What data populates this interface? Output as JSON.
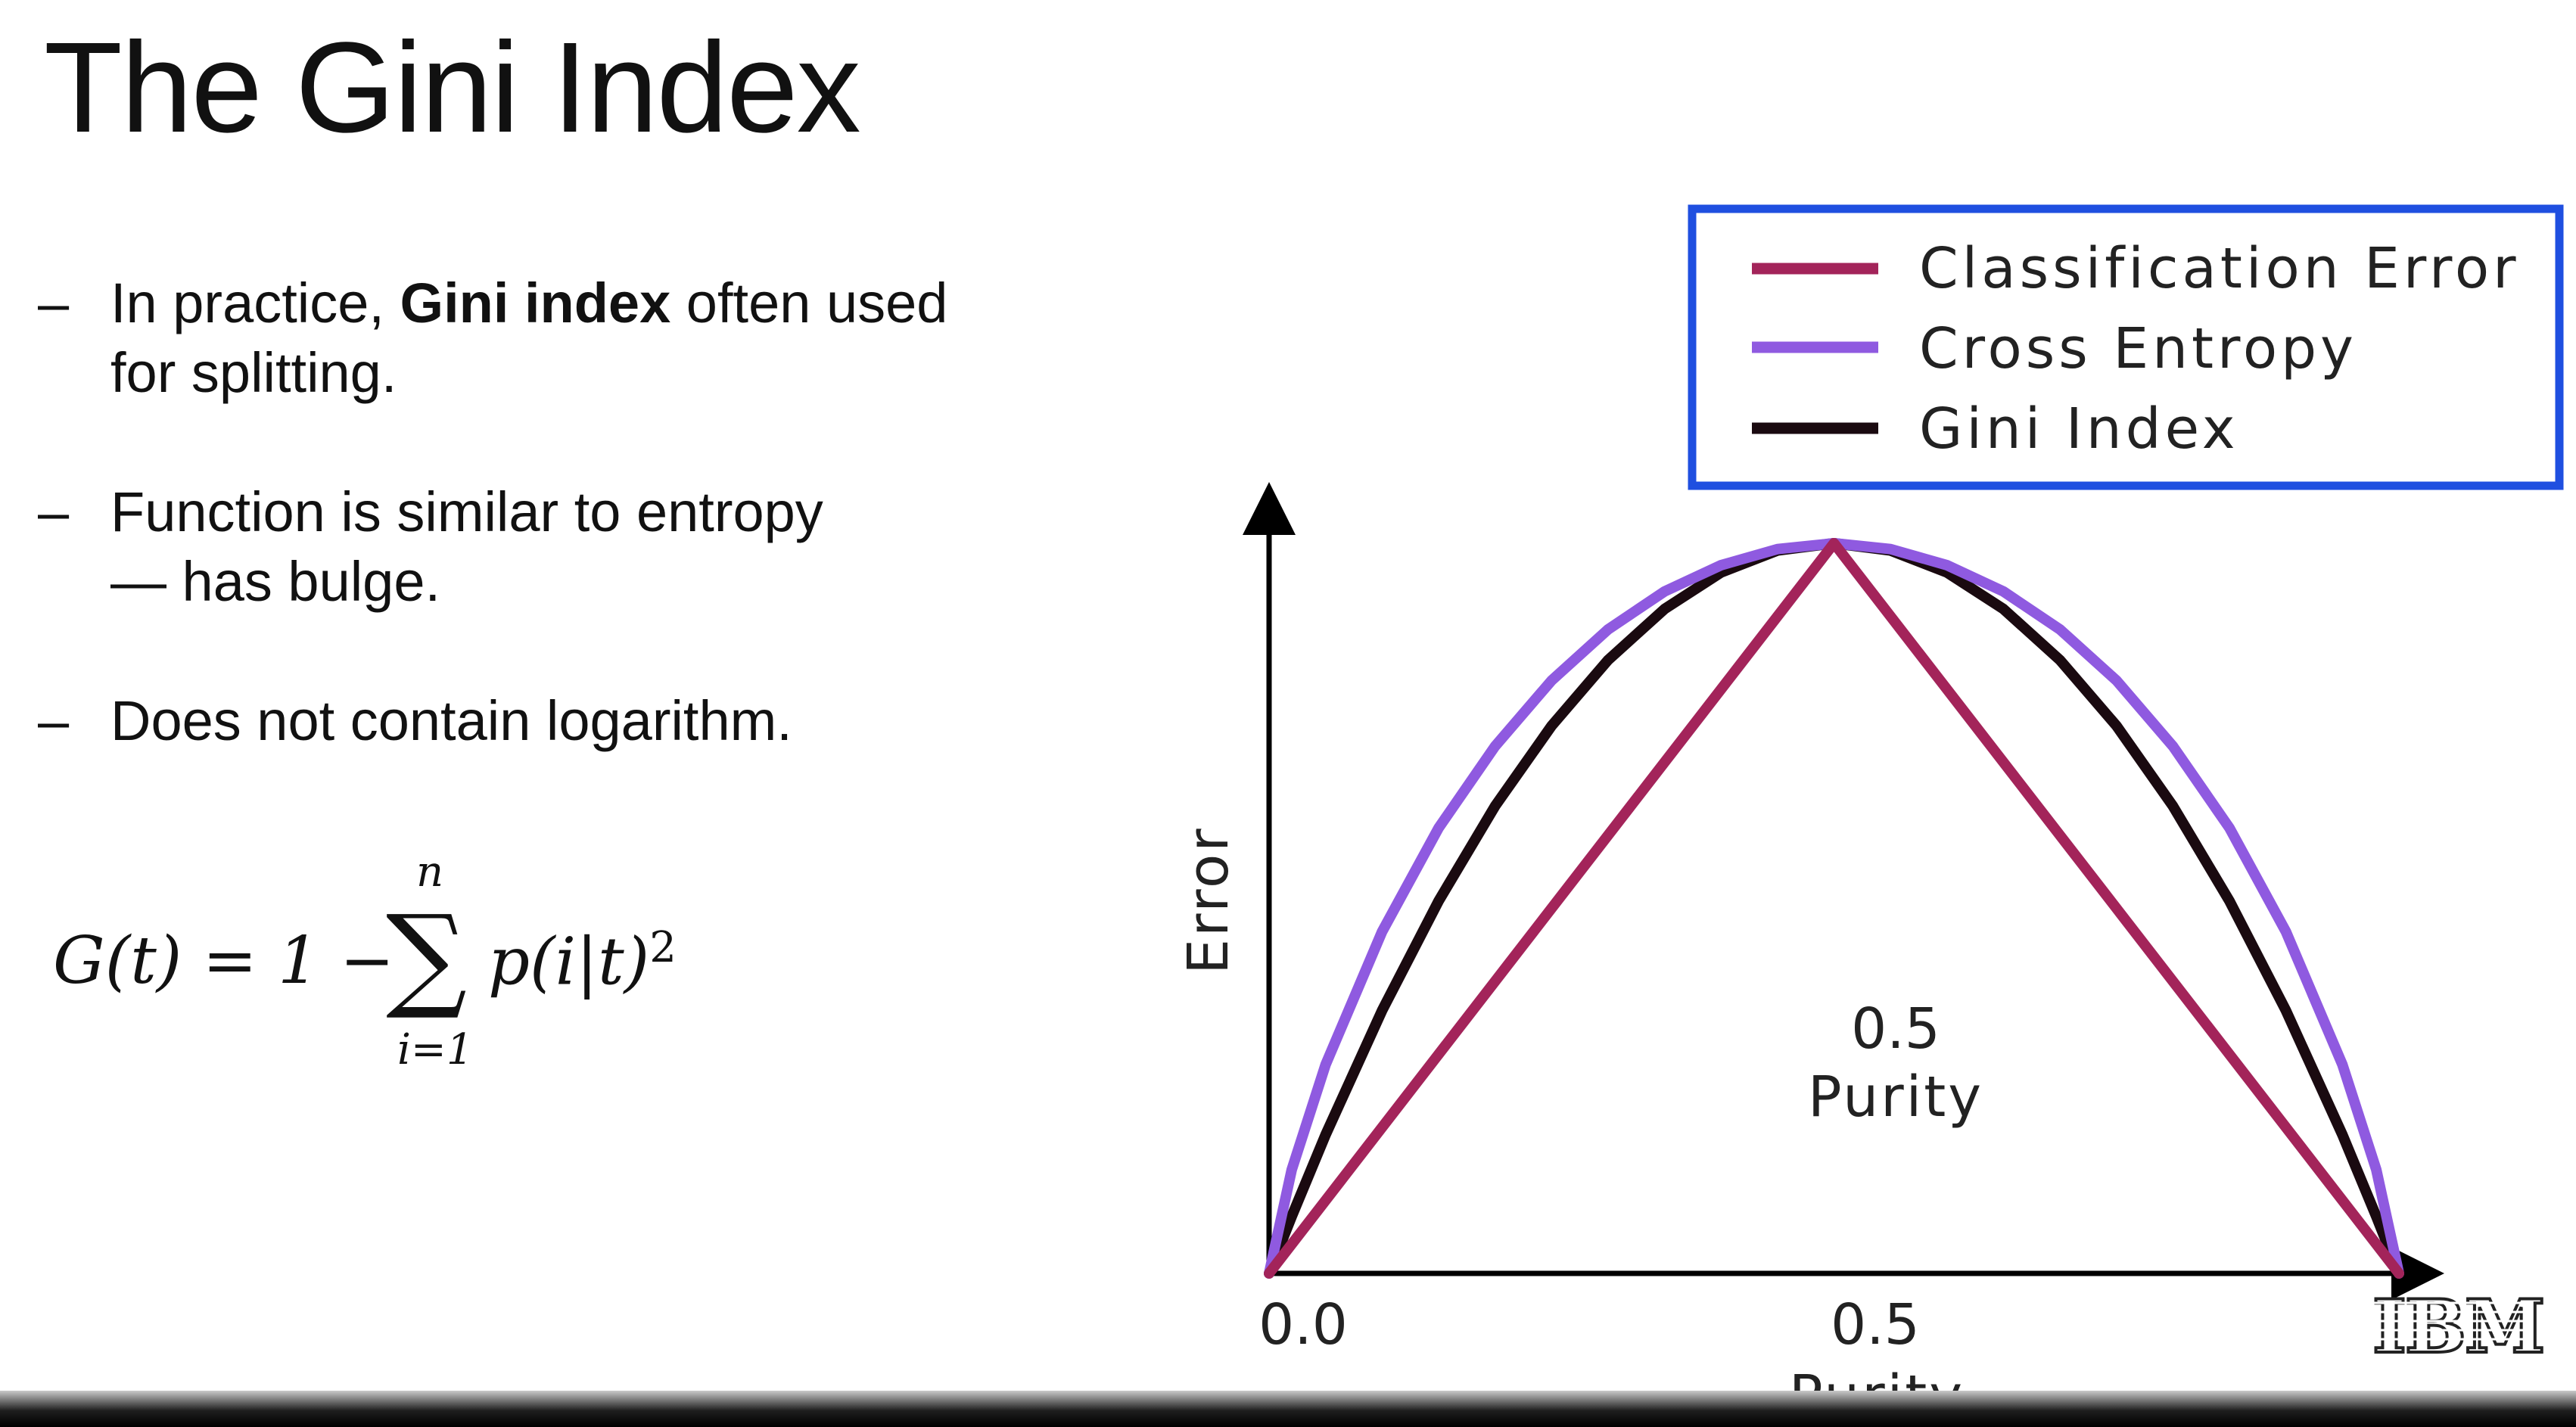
{
  "slide": {
    "title": "The Gini Index",
    "bullets": [
      {
        "dash": "–",
        "line1_pre": "In practice, ",
        "line1_bold": "Gini index",
        "line1_post": " often used",
        "line2": "for splitting."
      },
      {
        "dash": "–",
        "line1": "Function is similar to entropy",
        "line2": "— has bulge."
      },
      {
        "dash": "–",
        "line1": "Does not contain logarithm."
      }
    ],
    "formula": {
      "lhs": "G(t) = 1 −",
      "sigma": "∑",
      "upper": "n",
      "lower": "i=1",
      "rhs": "p(i|t)",
      "exponent": "2"
    },
    "logo": "IBM"
  },
  "chart_data": {
    "type": "line",
    "xlabel": "Purity",
    "ylabel": "Error",
    "x_ticks": [
      "0.0",
      "0.5"
    ],
    "annotation": {
      "line1": "0.5",
      "line2": "Purity"
    },
    "legend_position": "top-right",
    "series": [
      {
        "name": "Classification Error",
        "color": "#a3245a",
        "x": [
          0,
          0.5,
          1
        ],
        "y": [
          0,
          0.5,
          0
        ]
      },
      {
        "name": "Cross Entropy",
        "color": "#8f5ae0",
        "x": [
          0,
          0.02,
          0.05,
          0.1,
          0.15,
          0.2,
          0.25,
          0.3,
          0.35,
          0.4,
          0.45,
          0.5,
          0.55,
          0.6,
          0.65,
          0.7,
          0.75,
          0.8,
          0.85,
          0.9,
          0.95,
          0.98,
          1
        ],
        "y": [
          0,
          0.071,
          0.143,
          0.234,
          0.305,
          0.361,
          0.406,
          0.441,
          0.467,
          0.485,
          0.496,
          0.5,
          0.496,
          0.485,
          0.467,
          0.441,
          0.406,
          0.361,
          0.305,
          0.234,
          0.143,
          0.071,
          0
        ]
      },
      {
        "name": "Gini Index",
        "color": "#1a0a10",
        "x": [
          0,
          0.02,
          0.05,
          0.1,
          0.15,
          0.2,
          0.25,
          0.3,
          0.35,
          0.4,
          0.45,
          0.5,
          0.55,
          0.6,
          0.65,
          0.7,
          0.75,
          0.8,
          0.85,
          0.9,
          0.95,
          0.98,
          1
        ],
        "y": [
          0,
          0.039,
          0.095,
          0.18,
          0.255,
          0.32,
          0.375,
          0.42,
          0.455,
          0.48,
          0.495,
          0.5,
          0.495,
          0.48,
          0.455,
          0.42,
          0.375,
          0.32,
          0.255,
          0.18,
          0.095,
          0.039,
          0
        ]
      }
    ]
  }
}
